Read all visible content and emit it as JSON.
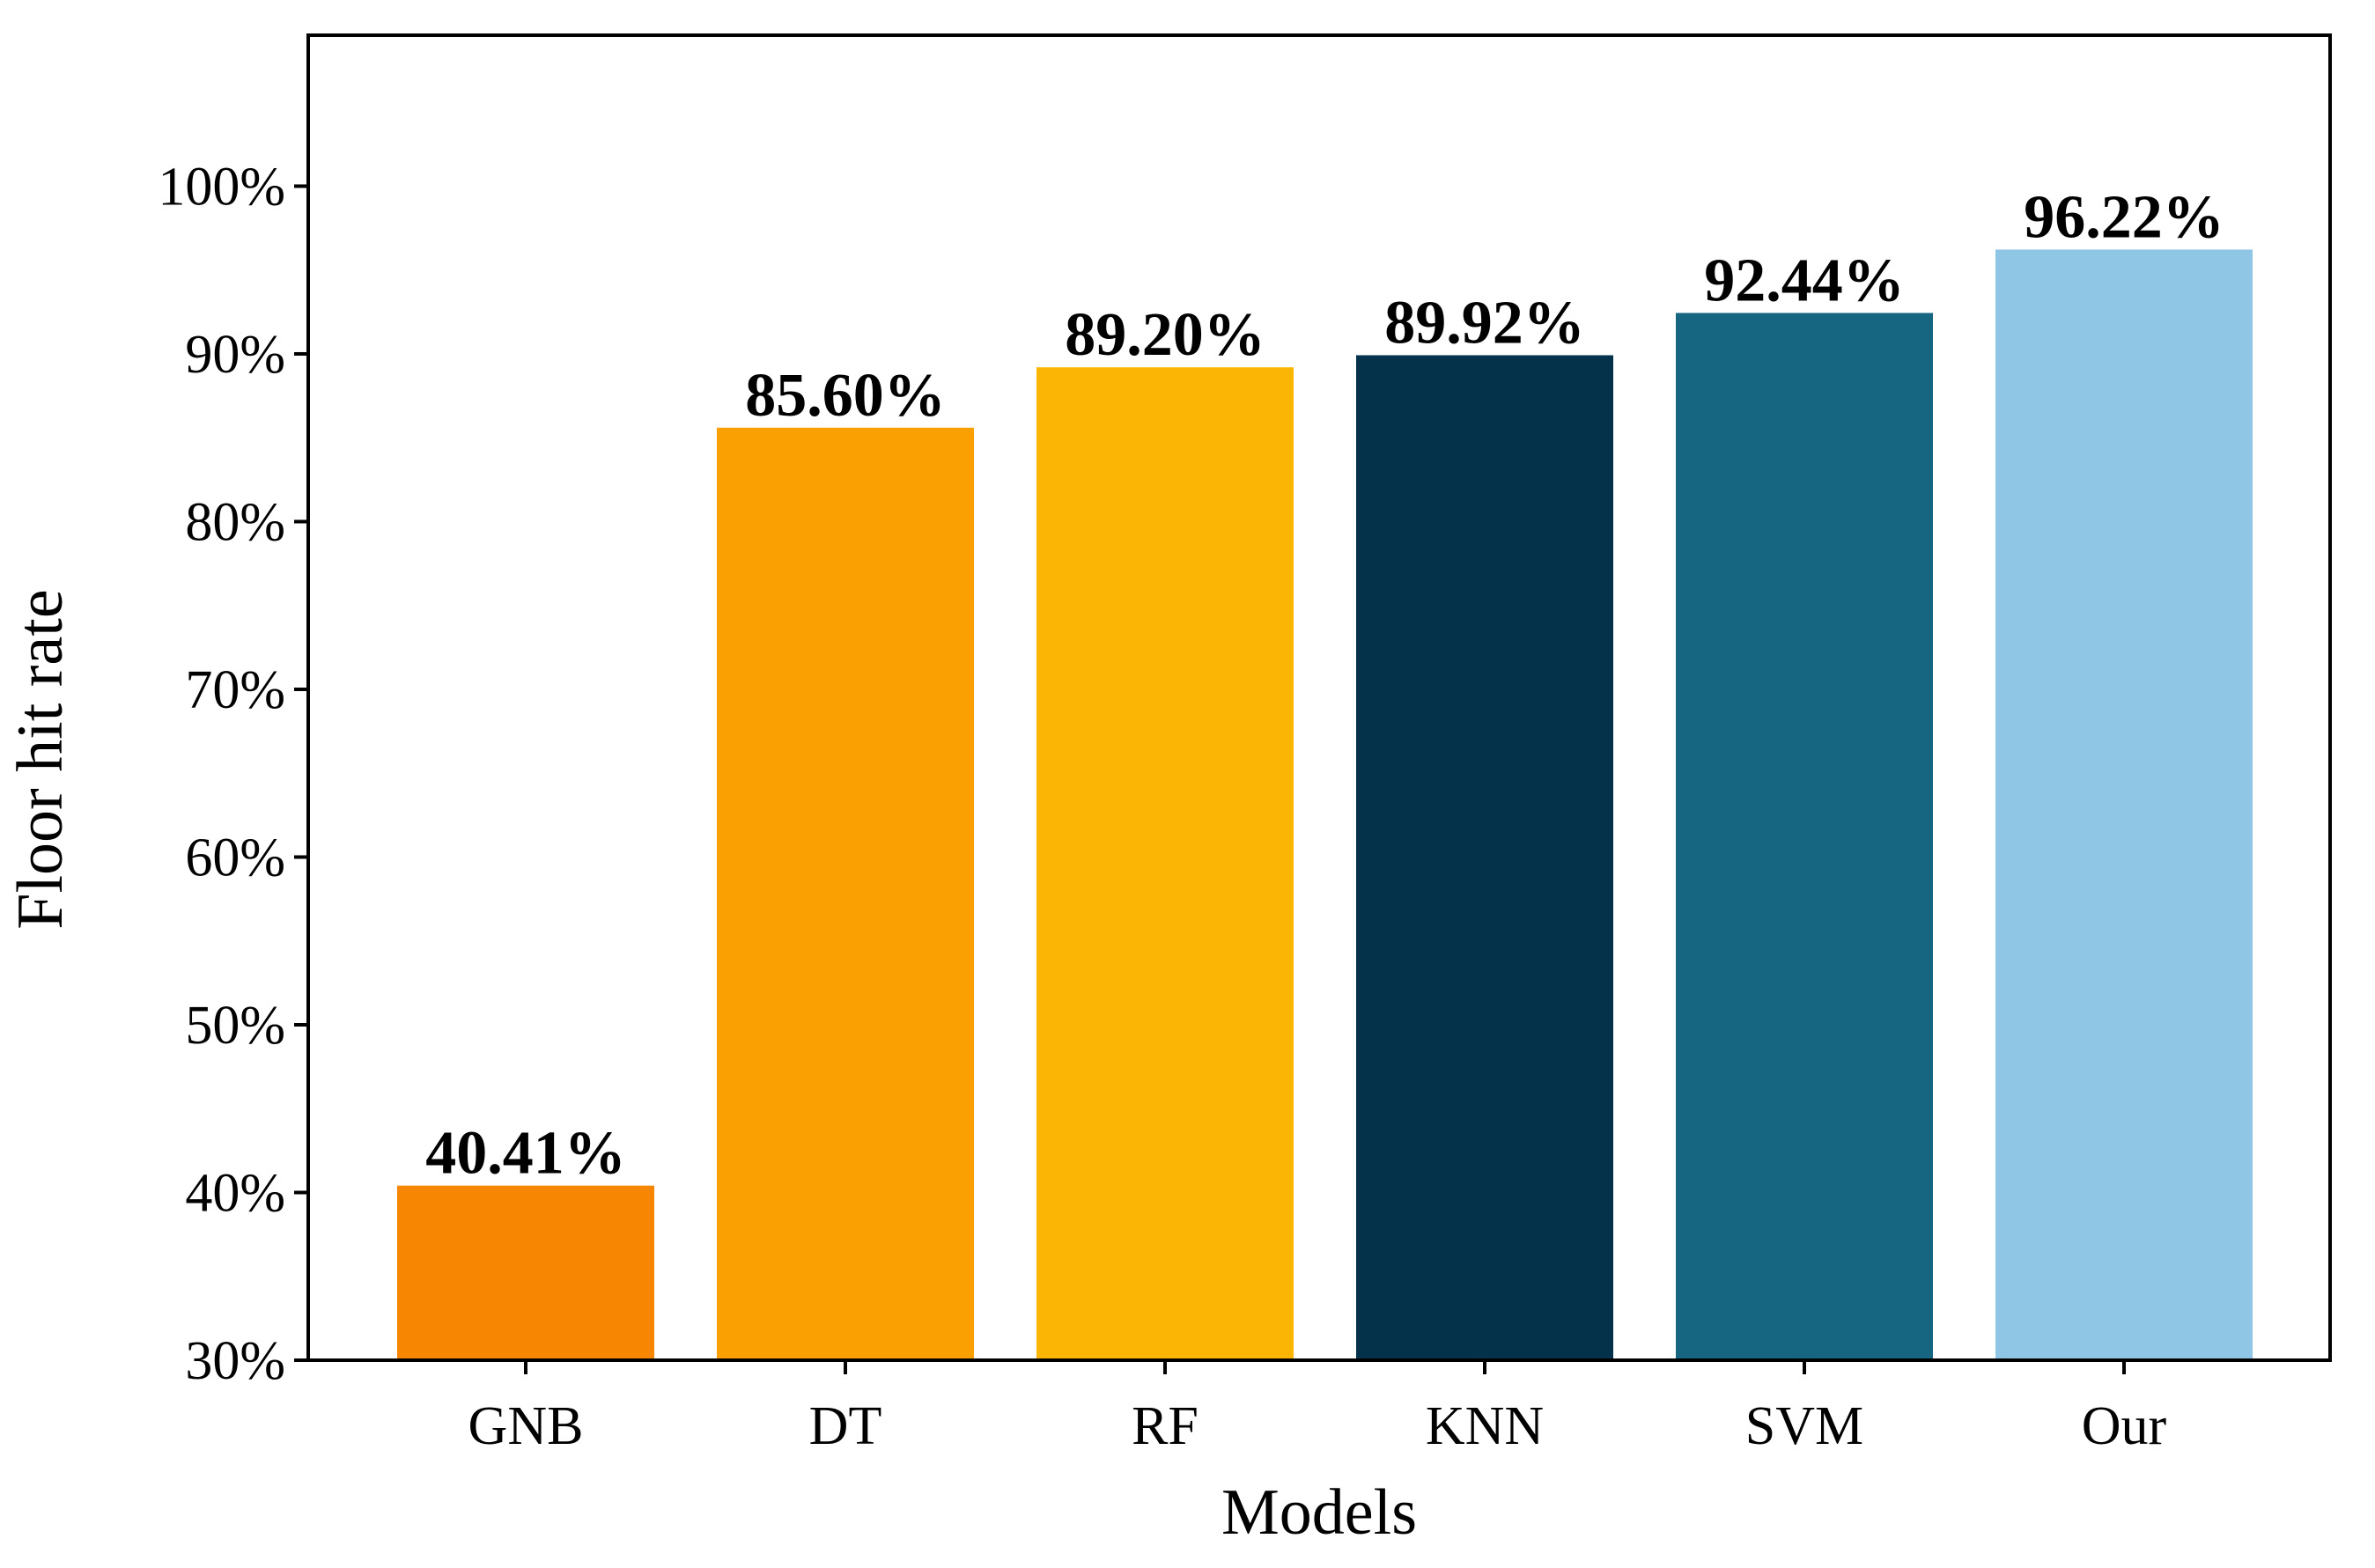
{
  "chart_data": {
    "type": "bar",
    "title": "",
    "xlabel": "Models",
    "ylabel": "Floor hit rate",
    "categories": [
      "GNB",
      "DT",
      "RF",
      "KNN",
      "SVM",
      "Our"
    ],
    "values": [
      40.41,
      85.6,
      89.2,
      89.92,
      92.44,
      96.22
    ],
    "data_labels": [
      "40.41%",
      "85.60%",
      "89.20%",
      "89.92%",
      "92.44%",
      "96.22%"
    ],
    "bar_colors": [
      "#F78703",
      "#FAA002",
      "#FBB605",
      "#04324A",
      "#166581",
      "#8FC6E5"
    ],
    "ylim": [
      30,
      109
    ],
    "yticks": [
      30,
      40,
      50,
      60,
      70,
      80,
      90,
      100
    ],
    "ytick_labels": [
      "30%",
      "40%",
      "50%",
      "60%",
      "70%",
      "80%",
      "90%",
      "100%"
    ],
    "grid": false,
    "legend": "none"
  }
}
